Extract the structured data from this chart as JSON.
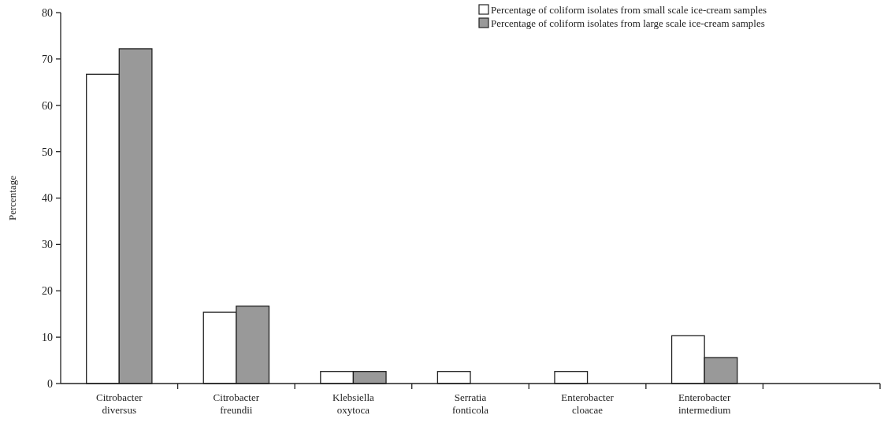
{
  "chart_data": {
    "type": "bar",
    "ylabel": "Percentage",
    "categories": [
      "Citrobacter diversus",
      "Citrobacter freundii",
      "Klebsiella oxytoca",
      "Serratia fonticola",
      "Enterobacter cloacae",
      "Enterobacter intermedium",
      null
    ],
    "series": [
      {
        "name": "Percentage of coliform isolates from small scale ice-cream samples",
        "color": "#ffffff",
        "values": [
          66.7,
          15.4,
          2.6,
          2.6,
          2.6,
          10.3,
          null
        ]
      },
      {
        "name": "Percentage of coliform isolates from large scale ice-cream samples",
        "color": "#999999",
        "values": [
          72.2,
          16.7,
          2.6,
          null,
          null,
          5.6,
          null
        ]
      }
    ],
    "ylim": [
      0,
      80
    ],
    "yticks": [
      0,
      10,
      20,
      30,
      40,
      50,
      60,
      70,
      80
    ],
    "grid": false,
    "legend": "top right"
  }
}
